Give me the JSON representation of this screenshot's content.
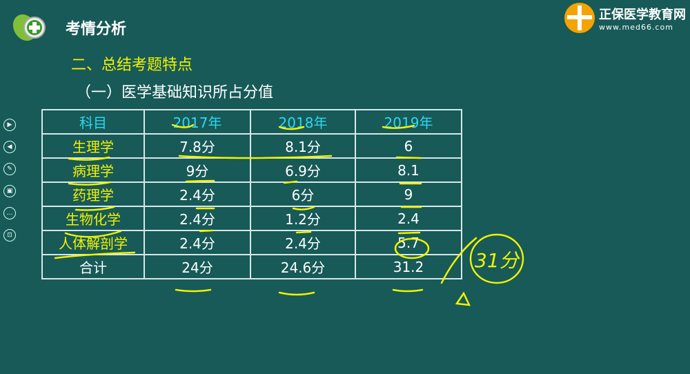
{
  "header": {
    "section_title": "考情分析",
    "brand_name": "正保医学教育网",
    "brand_url": "www.med66.com"
  },
  "headings": {
    "h1": "二、总结考题特点",
    "h2": "（一）医学基础知识所占分值"
  },
  "sidebar": {
    "items": [
      {
        "icon": "play-next-icon",
        "glyph": "▶"
      },
      {
        "icon": "play-prev-icon",
        "glyph": "◀"
      },
      {
        "icon": "pen-icon",
        "glyph": "✎"
      },
      {
        "icon": "screen-icon",
        "glyph": "▣"
      },
      {
        "icon": "more-icon",
        "glyph": "…"
      },
      {
        "icon": "display-icon",
        "glyph": "⊡"
      }
    ]
  },
  "table": {
    "headers": [
      "科目",
      "2017年",
      "2018年",
      "2019年"
    ],
    "rows": [
      [
        "生理学",
        "7.8分",
        "8.1分",
        "6"
      ],
      [
        "病理学",
        "9分",
        "6.9分",
        "8.1"
      ],
      [
        "药理学",
        "2.4分",
        "6分",
        "9"
      ],
      [
        "生物化学",
        "2.4分",
        "1.2分",
        "2.4"
      ],
      [
        "人体解剖学",
        "2.4分",
        "2.4分",
        "5.7"
      ],
      [
        "合计",
        "24分",
        "24.6分",
        "31.2"
      ]
    ]
  },
  "annotation": {
    "text": "31分",
    "color": "#f2f200"
  },
  "colors": {
    "background": "#175a58",
    "heading_yellow": "#f2f200",
    "header_cyan": "#2fd8f0",
    "brand_orange": "#f5a300"
  }
}
